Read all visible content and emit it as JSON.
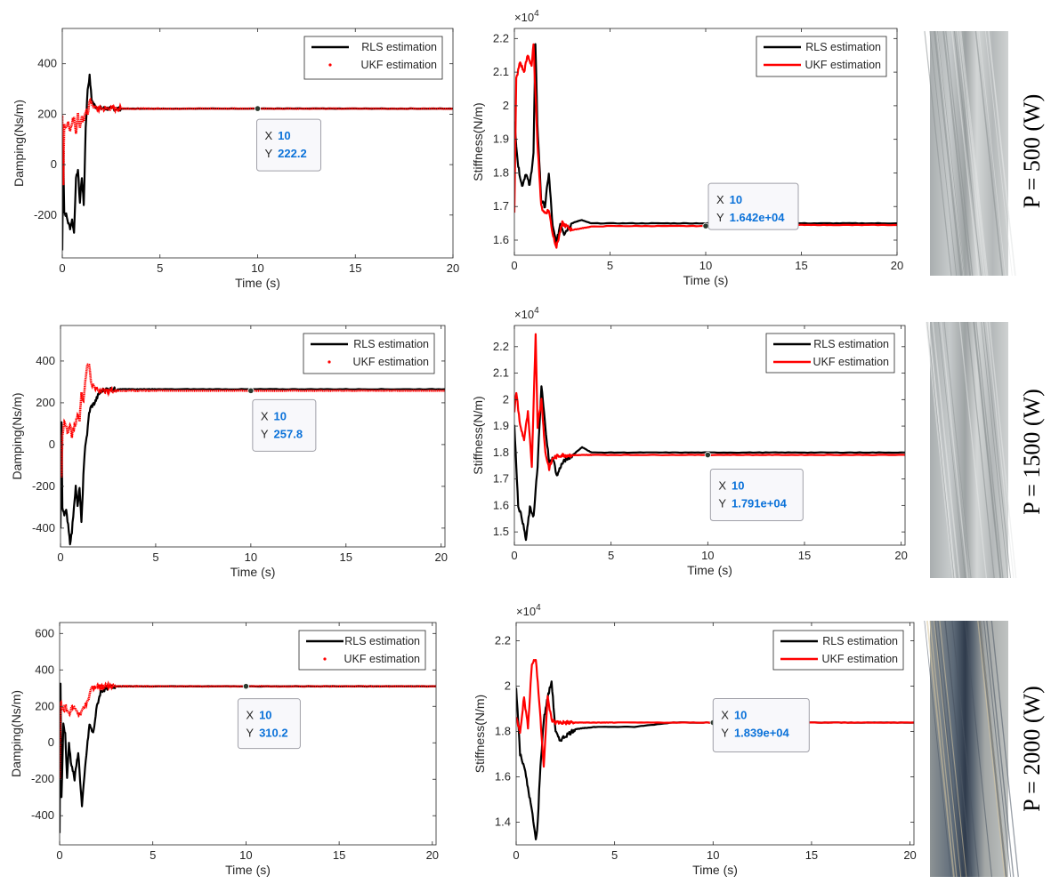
{
  "series_colors": {
    "rls": "#000000",
    "ukf": "#ff0000"
  },
  "rows": [
    {
      "power_label": "P = 500 (W)",
      "photo_tone": "light"
    },
    {
      "power_label": "P = 1500 (W)",
      "photo_tone": "light"
    },
    {
      "power_label": "P = 2000 (W)",
      "photo_tone": "dark"
    }
  ],
  "chart_data": [
    {
      "type": "line",
      "ylabel": "Damping(Ns/m)",
      "xlabel": "Time (s)",
      "xlim": [
        0,
        20
      ],
      "ylim": [
        -370,
        540
      ],
      "xticks": [
        "0",
        "5",
        "10",
        "15",
        "20"
      ],
      "yticks": [
        -200,
        0,
        200,
        400
      ],
      "ytick_labels": [
        "-200",
        "0",
        "200",
        "400"
      ],
      "multiplier": "",
      "legend": [
        "RLS estimation",
        "UKF estimation"
      ],
      "legend_position": "top-right",
      "ukf_style": "markers",
      "datatip": {
        "x_label": "X",
        "y_label": "Y",
        "x": 10,
        "y": 222.2,
        "x_text": "10",
        "y_text": "222.2"
      },
      "series": [
        {
          "name": "RLS estimation",
          "x": [
            0,
            0.05,
            0.1,
            0.2,
            0.3,
            0.4,
            0.5,
            0.6,
            0.7,
            0.8,
            0.9,
            1.0,
            1.1,
            1.2,
            1.3,
            1.4,
            1.5,
            1.6,
            1.7,
            1.8,
            2.0,
            2.5,
            3,
            4,
            5,
            10,
            15,
            20
          ],
          "y": [
            -340,
            60,
            -190,
            -200,
            -230,
            -250,
            -220,
            -270,
            -60,
            -20,
            -150,
            -50,
            -160,
            150,
            300,
            350,
            260,
            240,
            230,
            225,
            223,
            222,
            222,
            222,
            222,
            222.2,
            222,
            222
          ]
        },
        {
          "name": "UKF estimation",
          "x": [
            0,
            0.05,
            0.1,
            0.2,
            0.3,
            0.4,
            0.5,
            0.6,
            0.7,
            0.8,
            0.9,
            1.0,
            1.1,
            1.2,
            1.3,
            1.4,
            1.5,
            1.6,
            1.8,
            2.0,
            3,
            5,
            10,
            15,
            20
          ],
          "y": [
            200,
            -80,
            160,
            150,
            170,
            140,
            160,
            190,
            130,
            200,
            150,
            190,
            170,
            210,
            200,
            260,
            240,
            230,
            222,
            222,
            222,
            222,
            222.2,
            222,
            222
          ]
        }
      ]
    },
    {
      "type": "line",
      "ylabel": "Stiffness(N/m)",
      "xlabel": "Time (s)",
      "xlim": [
        0,
        20
      ],
      "ylim": [
        15550,
        22300
      ],
      "xticks": [
        "0",
        "5",
        "10",
        "15",
        "20"
      ],
      "yticks": [
        16000,
        17000,
        18000,
        19000,
        20000,
        21000,
        22000
      ],
      "ytick_labels": [
        "1.6",
        "1.7",
        "1.8",
        "1.9",
        "2",
        "2.1",
        "2.2"
      ],
      "multiplier": "×10^4",
      "legend": [
        "RLS estimation",
        "UKF estimation"
      ],
      "legend_position": "top-right",
      "ukf_style": "line",
      "datatip": {
        "x_label": "X",
        "y_label": "Y",
        "x": 10,
        "y": 16420,
        "x_text": "10",
        "y_text": "1.642e+04"
      },
      "series": [
        {
          "name": "RLS estimation",
          "x": [
            0,
            0.2,
            0.4,
            0.6,
            0.8,
            1.0,
            1.1,
            1.2,
            1.4,
            1.6,
            1.8,
            2.0,
            2.2,
            2.4,
            2.6,
            3.0,
            3.5,
            4,
            5,
            10,
            15,
            20
          ],
          "y": [
            19500,
            18200,
            17600,
            18000,
            17600,
            18600,
            21800,
            19500,
            17200,
            17000,
            18000,
            16400,
            15900,
            16500,
            16200,
            16500,
            16600,
            16500,
            16500,
            16500,
            16500,
            16500
          ]
        },
        {
          "name": "UKF estimation",
          "x": [
            0,
            0.1,
            0.3,
            0.5,
            0.7,
            0.9,
            1.0,
            1.2,
            1.4,
            1.6,
            1.8,
            2.0,
            2.2,
            2.5,
            3,
            4,
            5,
            10,
            15,
            20
          ],
          "y": [
            16800,
            20800,
            21300,
            21000,
            21500,
            21200,
            21800,
            19000,
            17000,
            16800,
            16900,
            16200,
            15800,
            16500,
            16300,
            16400,
            16420,
            16420,
            16450,
            16450
          ]
        }
      ]
    },
    {
      "type": "line",
      "ylabel": "Damping(Ns/m)",
      "xlabel": "Time (s)",
      "xlim": [
        0,
        20.2
      ],
      "ylim": [
        -490,
        570
      ],
      "xticks": [
        "0",
        "5",
        "10",
        "15",
        "20"
      ],
      "yticks": [
        -400,
        -200,
        0,
        200,
        400
      ],
      "ytick_labels": [
        "-400",
        "-200",
        "0",
        "200",
        "400"
      ],
      "multiplier": "",
      "legend": [
        "RLS estimation",
        "UKF estimation"
      ],
      "legend_position": "top-right",
      "ukf_style": "markers",
      "datatip": {
        "x_label": "X",
        "y_label": "Y",
        "x": 10,
        "y": 257.8,
        "x_text": "10",
        "y_text": "257.8"
      },
      "series": [
        {
          "name": "RLS estimation",
          "x": [
            0,
            0.05,
            0.1,
            0.2,
            0.3,
            0.4,
            0.5,
            0.6,
            0.7,
            0.8,
            0.9,
            1.0,
            1.1,
            1.2,
            1.3,
            1.4,
            1.5,
            1.6,
            1.8,
            2.0,
            2.2,
            2.5,
            3,
            5,
            10,
            15,
            20.2
          ],
          "y": [
            -400,
            100,
            -300,
            -330,
            -320,
            -380,
            -470,
            -420,
            -300,
            -200,
            -300,
            -200,
            -380,
            -150,
            0,
            50,
            150,
            180,
            200,
            240,
            260,
            265,
            265,
            265,
            265,
            265,
            265
          ]
        },
        {
          "name": "UKF estimation",
          "x": [
            0,
            0.05,
            0.1,
            0.2,
            0.3,
            0.4,
            0.5,
            0.6,
            0.7,
            0.8,
            0.9,
            1.0,
            1.1,
            1.2,
            1.3,
            1.4,
            1.5,
            1.6,
            1.8,
            2.0,
            2.5,
            3,
            5,
            10,
            15,
            20.2
          ],
          "y": [
            0,
            -150,
            50,
            100,
            80,
            60,
            100,
            40,
            80,
            100,
            150,
            120,
            250,
            200,
            300,
            380,
            390,
            300,
            270,
            260,
            258,
            258,
            258,
            257.8,
            258,
            258
          ]
        }
      ]
    },
    {
      "type": "line",
      "ylabel": "Stiffness(N/m)",
      "xlabel": "Time (s)",
      "xlim": [
        0,
        20.2
      ],
      "ylim": [
        14500,
        22800
      ],
      "xticks": [
        "0",
        "5",
        "10",
        "15",
        "20"
      ],
      "yticks": [
        15000,
        16000,
        17000,
        18000,
        19000,
        20000,
        21000,
        22000
      ],
      "ytick_labels": [
        "1.5",
        "1.6",
        "1.7",
        "1.8",
        "1.9",
        "2",
        "2.1",
        "2.2"
      ],
      "multiplier": "×10^4",
      "legend": [
        "RLS estimation",
        "UKF estimation"
      ],
      "legend_position": "top-right",
      "ukf_style": "line",
      "datatip": {
        "x_label": "X",
        "y_label": "Y",
        "x": 10,
        "y": 17910,
        "x_text": "10",
        "y_text": "1.791e+04"
      },
      "series": [
        {
          "name": "RLS estimation",
          "x": [
            0,
            0.2,
            0.4,
            0.6,
            0.8,
            1.0,
            1.2,
            1.4,
            1.6,
            1.8,
            2.0,
            2.2,
            2.4,
            2.6,
            3.0,
            3.5,
            4,
            5,
            10,
            15,
            20.2
          ],
          "y": [
            19000,
            16000,
            15500,
            14700,
            15900,
            15600,
            17500,
            20500,
            19000,
            17600,
            17800,
            17100,
            17500,
            17700,
            17900,
            18200,
            18000,
            18000,
            18000,
            18000,
            18000
          ]
        },
        {
          "name": "UKF estimation",
          "x": [
            0,
            0.1,
            0.3,
            0.5,
            0.7,
            0.9,
            1.1,
            1.2,
            1.4,
            1.6,
            1.8,
            2.0,
            2.4,
            3,
            4,
            5,
            10,
            15,
            20.2
          ],
          "y": [
            19500,
            20300,
            19000,
            18500,
            19500,
            17500,
            22500,
            19000,
            20000,
            18000,
            17400,
            17800,
            17900,
            17900,
            17910,
            17910,
            17910,
            17910,
            17910
          ]
        }
      ]
    },
    {
      "type": "line",
      "ylabel": "Damping(Ns/m)",
      "xlabel": "Time (s)",
      "xlim": [
        0,
        20.2
      ],
      "ylim": [
        -560,
        660
      ],
      "xticks": [
        "0",
        "5",
        "10",
        "15",
        "20"
      ],
      "yticks": [
        -400,
        -200,
        0,
        200,
        400,
        600
      ],
      "ytick_labels": [
        "-400",
        "-200",
        "0",
        "200",
        "400",
        "600"
      ],
      "multiplier": "",
      "legend": [
        "RLS estimation",
        "UKF estimation"
      ],
      "legend_position": "top-right",
      "ukf_style": "markers",
      "datatip": {
        "x_label": "X",
        "y_label": "Y",
        "x": 10,
        "y": 310.2,
        "x_text": "10",
        "y_text": "310.2"
      },
      "series": [
        {
          "name": "RLS estimation",
          "x": [
            0,
            0.05,
            0.1,
            0.2,
            0.3,
            0.4,
            0.5,
            0.6,
            0.8,
            1.0,
            1.2,
            1.4,
            1.6,
            1.8,
            2.0,
            2.2,
            2.5,
            3,
            4,
            5,
            10,
            15,
            20.2
          ],
          "y": [
            -500,
            330,
            -300,
            100,
            50,
            -200,
            0,
            -100,
            -200,
            -50,
            -350,
            -100,
            100,
            50,
            200,
            280,
            300,
            310,
            310,
            310,
            310,
            310,
            310
          ]
        },
        {
          "name": "UKF estimation",
          "x": [
            0,
            0.05,
            0.1,
            0.2,
            0.3,
            0.5,
            0.7,
            0.9,
            1.1,
            1.3,
            1.5,
            1.7,
            2.0,
            2.5,
            3,
            5,
            10,
            15,
            20.2
          ],
          "y": [
            -200,
            220,
            200,
            180,
            200,
            160,
            200,
            180,
            150,
            200,
            220,
            300,
            310,
            310,
            310,
            310,
            310.2,
            310,
            310
          ]
        }
      ]
    },
    {
      "type": "line",
      "ylabel": "Stiffness(N/m)",
      "xlabel": "Time (s)",
      "xlim": [
        0,
        20.2
      ],
      "ylim": [
        13000,
        22800
      ],
      "xticks": [
        "0",
        "5",
        "10",
        "15",
        "20"
      ],
      "yticks": [
        14000,
        16000,
        18000,
        20000,
        22000
      ],
      "ytick_labels": [
        "1.4",
        "1.6",
        "1.8",
        "2",
        "2.2"
      ],
      "multiplier": "×10^4",
      "legend": [
        "RLS estimation",
        "UKF estimation"
      ],
      "legend_position": "top-right",
      "ukf_style": "line",
      "datatip": {
        "x_label": "X",
        "y_label": "Y",
        "x": 10,
        "y": 18390,
        "x_text": "10",
        "y_text": "1.839e+04"
      },
      "series": [
        {
          "name": "RLS estimation",
          "x": [
            0,
            0.2,
            0.4,
            0.6,
            0.8,
            1.0,
            1.1,
            1.2,
            1.4,
            1.6,
            1.8,
            2.0,
            2.2,
            2.5,
            3,
            4,
            5,
            6,
            7,
            8,
            10,
            15,
            20.2
          ],
          "y": [
            20000,
            17000,
            16500,
            15500,
            14500,
            13200,
            14000,
            16000,
            18500,
            19500,
            20200,
            18000,
            17600,
            17800,
            18100,
            18200,
            18200,
            18200,
            18300,
            18400,
            18390,
            18390,
            18390
          ]
        },
        {
          "name": "UKF estimation",
          "x": [
            0,
            0.2,
            0.4,
            0.6,
            0.8,
            1.0,
            1.2,
            1.4,
            1.6,
            1.8,
            2.0,
            2.5,
            3,
            5,
            10,
            15,
            20.2
          ],
          "y": [
            18600,
            18000,
            19500,
            18200,
            21000,
            21200,
            19000,
            16500,
            19500,
            18500,
            18400,
            18390,
            18390,
            18390,
            18390,
            18390,
            18390
          ]
        }
      ]
    }
  ]
}
